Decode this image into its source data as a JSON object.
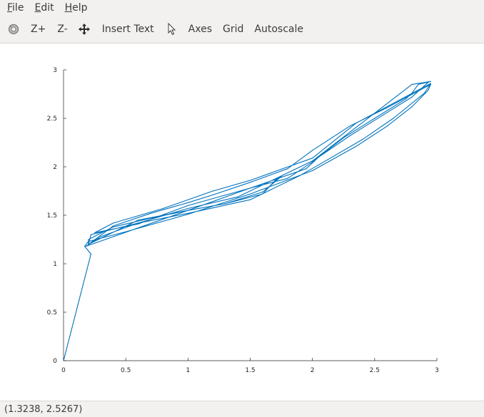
{
  "menu": {
    "file": {
      "mnemonic": "F",
      "rest": "ile"
    },
    "edit": {
      "mnemonic": "E",
      "rest": "dit"
    },
    "help": {
      "mnemonic": "H",
      "rest": "elp"
    }
  },
  "toolbar": {
    "zoom_in": "Z+",
    "zoom_out": "Z-",
    "insert_text": "Insert Text",
    "axes": "Axes",
    "grid": "Grid",
    "autoscale": "Autoscale"
  },
  "status": {
    "coordinates": "(1.3238, 2.5267)"
  },
  "colors": {
    "line": "#0072bd"
  },
  "chart_data": {
    "type": "line",
    "title": "",
    "xlabel": "",
    "ylabel": "",
    "xlim": [
      0,
      3
    ],
    "ylim": [
      0,
      3
    ],
    "grid": false,
    "xticks": [
      "0",
      "0.5",
      "1",
      "1.5",
      "2",
      "2.5",
      "3"
    ],
    "yticks": [
      "0",
      "0.5",
      "1",
      "1.5",
      "2",
      "2.5",
      "3"
    ],
    "xtick_values": [
      0,
      0.5,
      1,
      1.5,
      2,
      2.5,
      3
    ],
    "ytick_values": [
      0,
      0.5,
      1,
      1.5,
      2,
      2.5,
      3
    ],
    "series": [
      {
        "x": [
          0,
          0.22,
          0.17,
          0.2,
          0.5,
          1.0,
          1.5,
          2.0,
          2.35,
          2.6,
          2.8,
          2.93,
          2.95,
          2.6,
          2.3,
          2.0,
          1.8,
          1.5,
          1.2,
          1.0,
          0.7,
          0.4,
          0.2,
          0.2,
          0.4,
          0.7,
          1.0,
          1.3,
          1.6,
          1.75,
          1.7,
          1.6,
          1.3,
          1.0,
          0.6,
          0.2,
          0.22,
          0.6,
          1.0,
          1.5,
          1.9,
          2.05,
          2.4,
          2.65,
          2.9,
          2.95,
          2.35,
          2.0,
          1.5,
          1.2,
          0.8,
          0.4,
          0.25,
          0.6,
          1.0,
          1.5,
          1.8,
          2.0,
          2.25,
          2.5,
          2.75,
          2.8,
          2.85,
          2.95,
          2.8,
          2.0,
          1.4,
          1.0,
          0.6,
          0.3,
          0.18,
          0.6,
          1.0,
          1.5,
          1.95,
          2.05,
          2.3,
          2.6,
          2.8,
          2.92,
          2.94
        ],
        "y": [
          0,
          1.1,
          1.18,
          1.23,
          1.33,
          1.51,
          1.72,
          1.96,
          2.21,
          2.42,
          2.62,
          2.79,
          2.85,
          2.61,
          2.42,
          2.17,
          1.98,
          1.84,
          1.71,
          1.63,
          1.52,
          1.39,
          1.2,
          1.25,
          1.38,
          1.47,
          1.55,
          1.62,
          1.74,
          1.9,
          1.86,
          1.72,
          1.62,
          1.55,
          1.45,
          1.2,
          1.3,
          1.42,
          1.52,
          1.66,
          1.91,
          2.02,
          2.28,
          2.5,
          2.76,
          2.86,
          2.45,
          2.09,
          1.86,
          1.75,
          1.57,
          1.42,
          1.32,
          1.41,
          1.6,
          1.78,
          1.88,
          2.05,
          2.3,
          2.5,
          2.7,
          2.76,
          2.85,
          2.88,
          2.85,
          2.06,
          1.69,
          1.57,
          1.42,
          1.28,
          1.18,
          1.37,
          1.55,
          1.78,
          1.98,
          2.1,
          2.32,
          2.56,
          2.72,
          2.86,
          2.88
        ]
      }
    ]
  }
}
